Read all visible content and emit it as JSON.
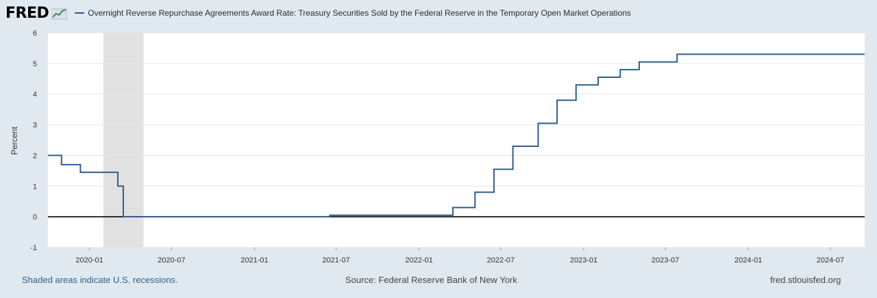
{
  "brand": {
    "logo_text": "FRED",
    "mark_icon": "chart-line-icon"
  },
  "colors": {
    "series": "#2e5e8c",
    "recession": "#e1e1e1",
    "background": "#e1e9f0"
  },
  "chart_data": {
    "type": "line",
    "title": "Overnight Reverse Repurchase Agreements Award Rate: Treasury Securities Sold by the Federal Reserve in the Temporary Open Market Operations",
    "ylabel": "Percent",
    "xlabel": "",
    "ylim": [
      -1,
      6
    ],
    "xlim": [
      "2019-10-01",
      "2024-09-15"
    ],
    "yticks": [
      "6",
      "5",
      "4",
      "3",
      "2",
      "1",
      "0",
      "-1"
    ],
    "xticks": [
      "2020-01",
      "2020-07",
      "2021-01",
      "2021-07",
      "2022-01",
      "2022-07",
      "2023-01",
      "2023-07",
      "2024-01",
      "2024-07"
    ],
    "grid": true,
    "legend": "top-left",
    "series": [
      {
        "values": [
          [
            "2019-10-01",
            2.0
          ],
          [
            "2019-10-31",
            1.7
          ],
          [
            "2019-12-12",
            1.45
          ],
          [
            "2020-03-04",
            1.0
          ],
          [
            "2020-03-16",
            0.0
          ],
          [
            "2021-06-17",
            0.05
          ],
          [
            "2022-03-17",
            0.3
          ],
          [
            "2022-05-05",
            0.8
          ],
          [
            "2022-06-16",
            1.55
          ],
          [
            "2022-07-28",
            2.3
          ],
          [
            "2022-09-22",
            3.05
          ],
          [
            "2022-11-03",
            3.8
          ],
          [
            "2022-12-15",
            4.3
          ],
          [
            "2023-02-02",
            4.55
          ],
          [
            "2023-03-23",
            4.8
          ],
          [
            "2023-05-04",
            5.05
          ],
          [
            "2023-07-27",
            5.3
          ],
          [
            "2024-09-15",
            5.3
          ]
        ]
      }
    ],
    "recessions": [
      [
        "2020-02-01",
        "2020-04-30"
      ]
    ]
  },
  "footer": {
    "note": "Shaded areas indicate U.S. recessions.",
    "source": "Source: Federal Reserve Bank of New York",
    "site": "fred.stlouisfed.org"
  }
}
